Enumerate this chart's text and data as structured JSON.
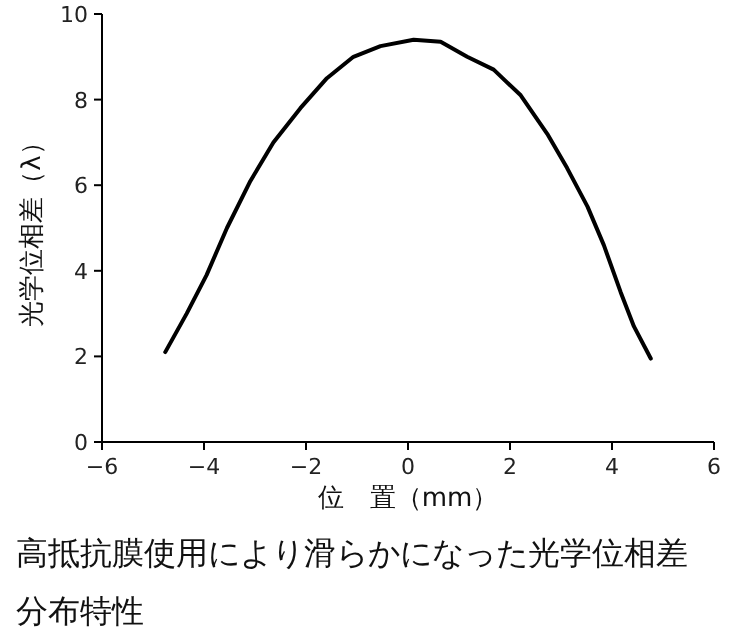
{
  "chart_data": {
    "type": "line",
    "title": "高抵抗膜使用により滑らかになった光学位相差分布特性",
    "xlabel": "位　置（mm）",
    "ylabel": "光学位相差（λ）",
    "x": [
      -4.76,
      -4.34,
      -3.95,
      -3.55,
      -3.09,
      -2.64,
      -2.11,
      -1.59,
      -1.07,
      -0.54,
      0.11,
      0.64,
      1.16,
      1.68,
      2.21,
      2.73,
      3.12,
      3.52,
      3.84,
      4.17,
      4.43,
      4.76
    ],
    "values": [
      2.1,
      3.0,
      3.9,
      5.0,
      6.1,
      7.0,
      7.8,
      8.5,
      9.0,
      9.25,
      9.4,
      9.35,
      9.0,
      8.7,
      8.1,
      7.2,
      6.4,
      5.5,
      4.6,
      3.5,
      2.7,
      1.95
    ],
    "color": "#000000",
    "xlim": [
      -6,
      6
    ],
    "ylim": [
      0,
      10
    ],
    "xticks": [
      -6,
      -4,
      -2,
      0,
      2,
      4,
      6
    ],
    "yticks": [
      0,
      2,
      4,
      6,
      8,
      10
    ]
  }
}
